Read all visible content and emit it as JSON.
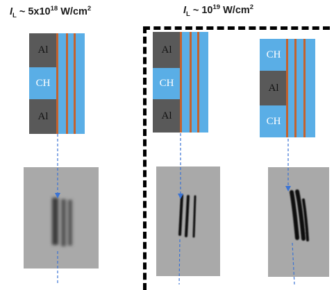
{
  "headings": {
    "left": {
      "symbol": "I",
      "subscript": "L",
      "text": " ~ 5x10",
      "exponent": "18",
      "unit": " W/cm",
      "unit_exp": "2"
    },
    "right": {
      "symbol": "I",
      "subscript": "L",
      "text": " ~ 10",
      "exponent": "19",
      "unit": " W/cm",
      "unit_exp": "2"
    }
  },
  "targets": [
    {
      "layers": [
        "Al",
        "CH",
        "Al"
      ]
    },
    {
      "layers": [
        "Al",
        "CH",
        "Al"
      ]
    },
    {
      "layers": [
        "CH",
        "Al",
        "CH"
      ]
    }
  ],
  "colors": {
    "aluminium": "#595959",
    "plastic": "#5aaee6",
    "copper_stripe": "#c4622d",
    "arrow": "#3a73d4",
    "dash_frame": "#000000",
    "image_background": "#a9a9a9",
    "streak": "#0a0a0a"
  }
}
